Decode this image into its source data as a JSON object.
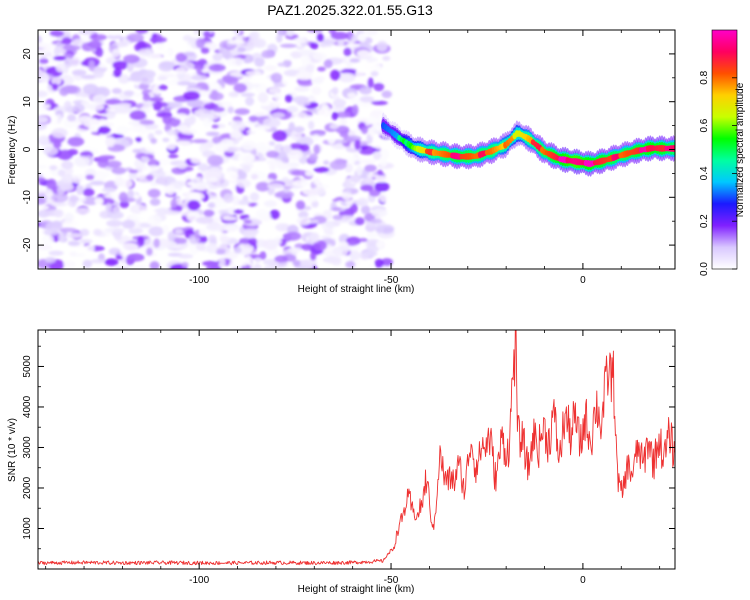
{
  "title": "PAZ1.2025.322.01.55.G13",
  "chart_data": [
    {
      "type": "heatmap",
      "name": "spectrogram",
      "xlabel": "Height of straight line (km)",
      "ylabel": "Frequency (Hz)",
      "xlim": [
        -142,
        24
      ],
      "ylim": [
        -25,
        25
      ],
      "x_ticks": [
        -100,
        -50,
        0
      ],
      "x_tick_labels": [
        "-100",
        "-50",
        "0"
      ],
      "y_ticks": [
        -20,
        -10,
        0,
        10,
        20
      ],
      "y_tick_labels": [
        "-20",
        "-10",
        "0",
        "10",
        "20"
      ],
      "noise_region_x": [
        -142,
        -51
      ],
      "ridge": {
        "x": [
          -52,
          -48,
          -44,
          -40,
          -36,
          -32,
          -28,
          -24,
          -20,
          -17,
          -14,
          -10,
          -6,
          -2,
          2,
          6,
          10,
          14,
          18,
          22,
          24
        ],
        "y": [
          5,
          2.5,
          0.3,
          -0.5,
          -1,
          -1.5,
          -1.4,
          -0.4,
          1,
          3.5,
          2.2,
          -0.5,
          -2,
          -2.5,
          -3,
          -2.2,
          -1.2,
          -0.3,
          0.3,
          0.2,
          0.2
        ],
        "peak_amplitude": [
          0.3,
          0.35,
          0.6,
          0.75,
          0.8,
          0.85,
          0.8,
          0.8,
          0.7,
          0.65,
          0.75,
          0.8,
          0.9,
          0.95,
          0.9,
          0.85,
          0.8,
          0.85,
          0.9,
          0.85,
          0.8
        ]
      },
      "colorbar": {
        "label": "Normalized spectral amplitude",
        "range": [
          0,
          1
        ],
        "ticks": [
          "0.0",
          "0.2",
          "0.4",
          "0.6",
          "0.8"
        ],
        "tick_values": [
          0.0,
          0.2,
          0.4,
          0.6,
          0.8
        ],
        "colors": [
          "#ffffff",
          "#d9c8ff",
          "#8020ff",
          "#1a1aff",
          "#00c8ff",
          "#00ffa0",
          "#00ff00",
          "#c8ff00",
          "#ffd000",
          "#ff5000",
          "#ff0060",
          "#ff00c8"
        ]
      }
    },
    {
      "type": "line",
      "name": "snr",
      "xlabel": "Height of straight line (km)",
      "ylabel": "SNR (10 * v/v)",
      "xlim": [
        -142,
        24
      ],
      "ylim": [
        0,
        5900
      ],
      "x_ticks": [
        -100,
        -50,
        0
      ],
      "x_tick_labels": [
        "-100",
        "-50",
        "0"
      ],
      "y_ticks": [
        1000,
        2000,
        3000,
        4000,
        5000
      ],
      "y_tick_labels": [
        "1000",
        "2000",
        "3000",
        "4000",
        "5000"
      ],
      "series": [
        {
          "name": "SNR",
          "color": "#ee3030",
          "x": [
            -142,
            -130,
            -120,
            -110,
            -100,
            -90,
            -80,
            -70,
            -60,
            -52,
            -49,
            -47,
            -45,
            -43,
            -41,
            -39,
            -37,
            -35,
            -33,
            -31,
            -29,
            -27,
            -25,
            -23,
            -21,
            -19,
            -17.5,
            -17,
            -16,
            -14,
            -12,
            -10,
            -8,
            -6,
            -4,
            -2,
            0,
            2,
            4,
            6,
            7.5,
            8,
            9,
            10,
            11,
            13,
            15,
            17,
            19,
            21,
            24
          ],
          "y": [
            150,
            160,
            150,
            155,
            150,
            150,
            155,
            150,
            160,
            200,
            600,
            1400,
            1700,
            1200,
            2200,
            1000,
            2800,
            2000,
            2500,
            2100,
            3000,
            2600,
            3400,
            2400,
            3000,
            3200,
            5800,
            3600,
            3000,
            2700,
            3300,
            3200,
            3600,
            3000,
            3700,
            3400,
            3400,
            3500,
            3800,
            4200,
            5300,
            4800,
            2100,
            2000,
            2200,
            2600,
            2800,
            2900,
            2900,
            3000,
            3100
          ]
        }
      ]
    }
  ]
}
